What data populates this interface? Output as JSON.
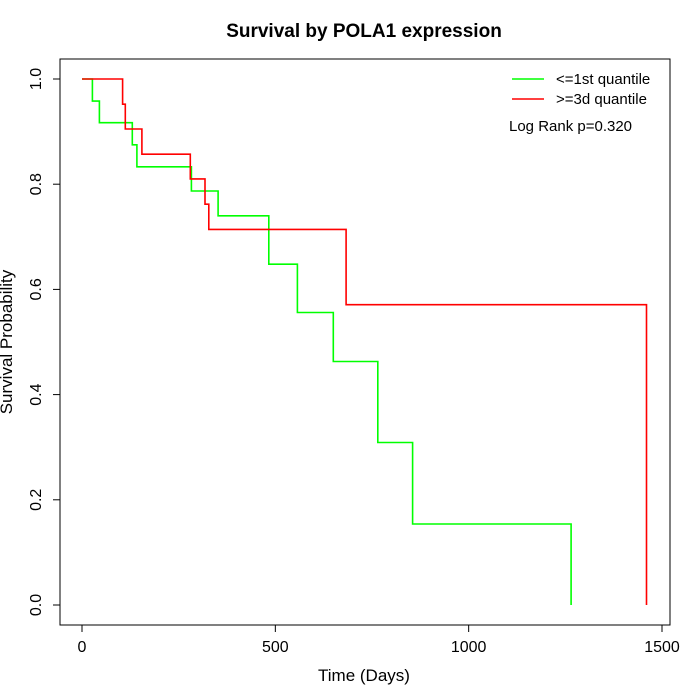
{
  "chart_data": {
    "type": "line",
    "title": "Survival by POLA1 expression",
    "xlabel": "Time (Days)",
    "ylabel": "Survival Probability",
    "xlim": [
      0,
      1500
    ],
    "ylim": [
      0,
      1
    ],
    "x_ticks": [
      0,
      500,
      1000,
      1500
    ],
    "y_ticks": [
      0.0,
      0.2,
      0.4,
      0.6,
      0.8,
      1.0
    ],
    "x_tick_labels": [
      "0",
      "500",
      "1000",
      "1500"
    ],
    "y_tick_labels": [
      "0.0",
      "0.2",
      "0.4",
      "0.6",
      "0.8",
      "1.0"
    ],
    "grid": false,
    "legend_position": "top-right",
    "annotation": "Log Rank p=0.320",
    "series": [
      {
        "name": "<=1st quantile",
        "color": "#00ff00",
        "step": true,
        "points": [
          [
            0,
            1.0
          ],
          [
            27,
            1.0
          ],
          [
            27,
            0.958
          ],
          [
            45,
            0.958
          ],
          [
            45,
            0.917
          ],
          [
            130,
            0.917
          ],
          [
            130,
            0.875
          ],
          [
            142,
            0.875
          ],
          [
            142,
            0.833
          ],
          [
            283,
            0.833
          ],
          [
            283,
            0.787
          ],
          [
            352,
            0.787
          ],
          [
            352,
            0.74
          ],
          [
            483,
            0.74
          ],
          [
            483,
            0.648
          ],
          [
            557,
            0.648
          ],
          [
            557,
            0.556
          ],
          [
            650,
            0.556
          ],
          [
            650,
            0.463
          ],
          [
            765,
            0.463
          ],
          [
            765,
            0.309
          ],
          [
            855,
            0.309
          ],
          [
            855,
            0.154
          ],
          [
            1265,
            0.154
          ],
          [
            1265,
            0.0
          ]
        ]
      },
      {
        "name": ">=3d quantile",
        "color": "#ff0000",
        "step": true,
        "points": [
          [
            0,
            1.0
          ],
          [
            105,
            1.0
          ],
          [
            105,
            0.952
          ],
          [
            112,
            0.952
          ],
          [
            112,
            0.905
          ],
          [
            155,
            0.905
          ],
          [
            155,
            0.857
          ],
          [
            280,
            0.857
          ],
          [
            280,
            0.81
          ],
          [
            318,
            0.81
          ],
          [
            318,
            0.762
          ],
          [
            328,
            0.762
          ],
          [
            328,
            0.714
          ],
          [
            683,
            0.714
          ],
          [
            683,
            0.571
          ],
          [
            1460,
            0.571
          ],
          [
            1460,
            0.0
          ]
        ]
      }
    ]
  }
}
